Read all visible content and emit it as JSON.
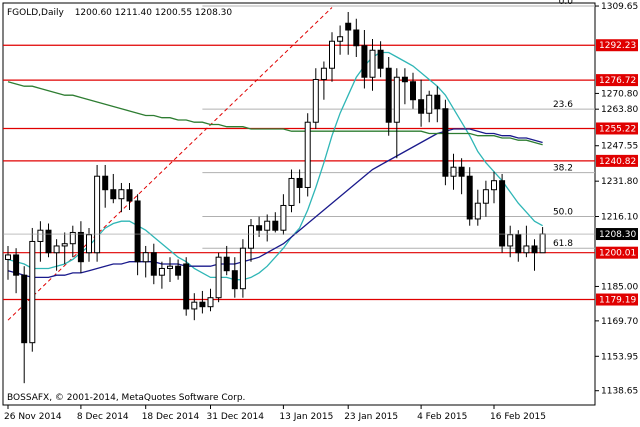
{
  "header": {
    "symbol": "FGOLD,Daily",
    "ohlc": "1200.60 1211.40 1200.55 1208.30"
  },
  "footer": {
    "copyright": "BOSSAFX, © 2001-2014, MetaQuotes Software Corp."
  },
  "colors": {
    "candle_up": "#ffffff",
    "candle_down": "#000000",
    "sr_line": "#e00000",
    "sma_fast": "#2fb6b6",
    "sma_mid": "#1a1a8c",
    "sma_slow": "#2e7d32",
    "trend_line": "#e00000",
    "fib_line": "#b0b0b0",
    "current_price_tag": "#000000"
  },
  "chart_data": {
    "type": "candlestick",
    "timeframe": "Daily",
    "y_axis": {
      "ylim": [
        1132.3,
        1311.0
      ],
      "tick_labels": [
        "1309.65",
        "1292.23",
        "1276.72",
        "1270.80",
        "1263.80",
        "1255.22",
        "1247.55",
        "1240.82",
        "1231.80",
        "1216.10",
        "1208.30",
        "1200.01",
        "1185.00",
        "1179.19",
        "1169.70",
        "1153.95",
        "1138.65"
      ]
    },
    "x_axis": {
      "tick_labels": [
        "26 Nov 2014",
        "8 Dec 2014",
        "18 Dec 2014",
        "31 Dec 2014",
        "13 Jan 2015",
        "23 Jan 2015",
        "4 Feb 2015",
        "16 Feb 2015"
      ]
    },
    "candles": [
      {
        "o": 1197.0,
        "h": 1203.0,
        "l": 1188.0,
        "c": 1199.0
      },
      {
        "o": 1199.0,
        "h": 1202.0,
        "l": 1182.0,
        "c": 1190.0
      },
      {
        "o": 1190.0,
        "h": 1194.0,
        "l": 1142.0,
        "c": 1160.0
      },
      {
        "o": 1160.0,
        "h": 1211.0,
        "l": 1156.0,
        "c": 1205.0
      },
      {
        "o": 1205.0,
        "h": 1214.0,
        "l": 1196.0,
        "c": 1210.0
      },
      {
        "o": 1210.0,
        "h": 1213.0,
        "l": 1198.0,
        "c": 1200.0
      },
      {
        "o": 1200.0,
        "h": 1206.0,
        "l": 1192.0,
        "c": 1203.0
      },
      {
        "o": 1203.0,
        "h": 1209.0,
        "l": 1195.0,
        "c": 1204.0
      },
      {
        "o": 1204.0,
        "h": 1212.0,
        "l": 1198.0,
        "c": 1209.0
      },
      {
        "o": 1209.0,
        "h": 1214.0,
        "l": 1191.0,
        "c": 1196.0
      },
      {
        "o": 1200.0,
        "h": 1211.0,
        "l": 1196.0,
        "c": 1208.0
      },
      {
        "o": 1200.0,
        "h": 1239.0,
        "l": 1196.0,
        "c": 1234.0
      },
      {
        "o": 1234.0,
        "h": 1239.0,
        "l": 1220.0,
        "c": 1228.0
      },
      {
        "o": 1228.0,
        "h": 1235.0,
        "l": 1222.0,
        "c": 1224.0
      },
      {
        "o": 1224.0,
        "h": 1231.0,
        "l": 1218.0,
        "c": 1228.0
      },
      {
        "o": 1228.0,
        "h": 1231.0,
        "l": 1219.0,
        "c": 1223.0
      },
      {
        "o": 1223.0,
        "h": 1226.0,
        "l": 1190.0,
        "c": 1196.0
      },
      {
        "o": 1196.0,
        "h": 1203.0,
        "l": 1189.0,
        "c": 1200.0
      },
      {
        "o": 1200.0,
        "h": 1204.0,
        "l": 1186.0,
        "c": 1190.0
      },
      {
        "o": 1190.0,
        "h": 1196.0,
        "l": 1184.0,
        "c": 1193.0
      },
      {
        "o": 1193.0,
        "h": 1198.0,
        "l": 1187.0,
        "c": 1194.0
      },
      {
        "o": 1194.0,
        "h": 1197.0,
        "l": 1188.0,
        "c": 1190.0
      },
      {
        "o": 1195.0,
        "h": 1198.0,
        "l": 1172.0,
        "c": 1175.0
      },
      {
        "o": 1175.0,
        "h": 1182.0,
        "l": 1170.0,
        "c": 1178.0
      },
      {
        "o": 1178.0,
        "h": 1183.0,
        "l": 1173.0,
        "c": 1176.0
      },
      {
        "o": 1176.0,
        "h": 1184.0,
        "l": 1174.0,
        "c": 1180.0
      },
      {
        "o": 1180.0,
        "h": 1200.0,
        "l": 1178.0,
        "c": 1198.0
      },
      {
        "o": 1198.0,
        "h": 1203.0,
        "l": 1190.0,
        "c": 1192.0
      },
      {
        "o": 1192.0,
        "h": 1198.0,
        "l": 1180.0,
        "c": 1184.0
      },
      {
        "o": 1184.0,
        "h": 1206.0,
        "l": 1180.0,
        "c": 1202.0
      },
      {
        "o": 1202.0,
        "h": 1215.0,
        "l": 1196.0,
        "c": 1212.0
      },
      {
        "o": 1212.0,
        "h": 1216.0,
        "l": 1207.0,
        "c": 1210.0
      },
      {
        "o": 1210.0,
        "h": 1217.0,
        "l": 1205.0,
        "c": 1214.0
      },
      {
        "o": 1214.0,
        "h": 1218.0,
        "l": 1209.0,
        "c": 1210.0
      },
      {
        "o": 1210.0,
        "h": 1226.0,
        "l": 1208.0,
        "c": 1221.0
      },
      {
        "o": 1221.0,
        "h": 1237.0,
        "l": 1218.0,
        "c": 1233.0
      },
      {
        "o": 1233.0,
        "h": 1237.0,
        "l": 1222.0,
        "c": 1229.0
      },
      {
        "o": 1229.0,
        "h": 1262.0,
        "l": 1225.0,
        "c": 1258.0
      },
      {
        "o": 1258.0,
        "h": 1282.0,
        "l": 1255.0,
        "c": 1277.0
      },
      {
        "o": 1277.0,
        "h": 1285.0,
        "l": 1268.0,
        "c": 1282.0
      },
      {
        "o": 1282.0,
        "h": 1298.0,
        "l": 1276.0,
        "c": 1294.0
      },
      {
        "o": 1294.0,
        "h": 1301.0,
        "l": 1288.0,
        "c": 1296.0
      },
      {
        "o": 1302.0,
        "h": 1307.0,
        "l": 1288.0,
        "c": 1299.0
      },
      {
        "o": 1299.0,
        "h": 1304.0,
        "l": 1287.0,
        "c": 1292.0
      },
      {
        "o": 1292.0,
        "h": 1299.0,
        "l": 1273.0,
        "c": 1278.0
      },
      {
        "o": 1278.0,
        "h": 1295.0,
        "l": 1272.0,
        "c": 1290.0
      },
      {
        "o": 1290.0,
        "h": 1294.0,
        "l": 1278.0,
        "c": 1282.0
      },
      {
        "o": 1282.0,
        "h": 1287.0,
        "l": 1252.0,
        "c": 1258.0
      },
      {
        "o": 1258.0,
        "h": 1282.0,
        "l": 1242.0,
        "c": 1278.0
      },
      {
        "o": 1278.0,
        "h": 1282.0,
        "l": 1266.0,
        "c": 1276.0
      },
      {
        "o": 1276.0,
        "h": 1280.0,
        "l": 1264.0,
        "c": 1268.0
      },
      {
        "o": 1268.0,
        "h": 1277.0,
        "l": 1256.0,
        "c": 1262.0
      },
      {
        "o": 1262.0,
        "h": 1272.0,
        "l": 1258.0,
        "c": 1270.0
      },
      {
        "o": 1270.0,
        "h": 1274.0,
        "l": 1258.0,
        "c": 1264.0
      },
      {
        "o": 1264.0,
        "h": 1268.0,
        "l": 1230.0,
        "c": 1234.0
      },
      {
        "o": 1234.0,
        "h": 1244.0,
        "l": 1228.0,
        "c": 1238.0
      },
      {
        "o": 1238.0,
        "h": 1242.0,
        "l": 1226.0,
        "c": 1234.0
      },
      {
        "o": 1234.0,
        "h": 1238.0,
        "l": 1212.0,
        "c": 1215.0
      },
      {
        "o": 1215.0,
        "h": 1228.0,
        "l": 1212.0,
        "c": 1222.0
      },
      {
        "o": 1222.0,
        "h": 1232.0,
        "l": 1216.0,
        "c": 1228.0
      },
      {
        "o": 1228.0,
        "h": 1236.0,
        "l": 1222.0,
        "c": 1232.0
      },
      {
        "o": 1232.0,
        "h": 1235.0,
        "l": 1200.0,
        "c": 1203.0
      },
      {
        "o": 1203.0,
        "h": 1212.0,
        "l": 1198.0,
        "c": 1208.0
      },
      {
        "o": 1208.0,
        "h": 1210.0,
        "l": 1196.0,
        "c": 1200.0
      },
      {
        "o": 1200.0,
        "h": 1212.0,
        "l": 1198.0,
        "c": 1203.0
      },
      {
        "o": 1203.0,
        "h": 1206.0,
        "l": 1192.0,
        "c": 1200.0
      },
      {
        "o": 1200.0,
        "h": 1211.4,
        "l": 1200.55,
        "c": 1208.3
      }
    ],
    "sr_levels": [
      {
        "label": "1292.23",
        "value": 1292.23
      },
      {
        "label": "1276.72",
        "value": 1276.72
      },
      {
        "label": "1255.22",
        "value": 1255.22
      },
      {
        "label": "1240.82",
        "value": 1240.82
      },
      {
        "label": "1200.01",
        "value": 1200.01
      },
      {
        "label": "1179.19",
        "value": 1179.19
      }
    ],
    "fib_levels": [
      {
        "label": "0.0",
        "value": 1309.65
      },
      {
        "label": "23.6",
        "value": 1263.8
      },
      {
        "label": "38.2",
        "value": 1235.6
      },
      {
        "label": "50.0",
        "value": 1216.1
      },
      {
        "label": "61.8",
        "value": 1202.0
      }
    ],
    "current_price": {
      "label": "1208.30",
      "value": 1208.3
    },
    "moving_averages": [
      {
        "values": [
          1197,
          1196,
          1195,
          1193,
          1193,
          1193,
          1194,
          1195,
          1197,
          1200,
          1203,
          1207,
          1211,
          1213,
          1214,
          1214,
          1212,
          1210,
          1207,
          1204,
          1201,
          1198,
          1196,
          1193,
          1191,
          1189,
          1189,
          1189,
          1188,
          1188,
          1189,
          1191,
          1194,
          1198,
          1202,
          1207,
          1211,
          1219,
          1229,
          1240,
          1252,
          1262,
          1270,
          1278,
          1283,
          1287,
          1289,
          1289,
          1287,
          1285,
          1283,
          1280,
          1277,
          1274,
          1270,
          1264,
          1258,
          1252,
          1245,
          1240,
          1236,
          1232,
          1227,
          1222,
          1218,
          1214,
          1212
        ]
      },
      {
        "values": [
          1192,
          1191,
          1190,
          1189,
          1189,
          1189,
          1190,
          1190,
          1191,
          1191,
          1192,
          1193,
          1194,
          1195,
          1195,
          1196,
          1196,
          1196,
          1196,
          1195,
          1195,
          1195,
          1194,
          1194,
          1194,
          1194,
          1195,
          1195,
          1195,
          1196,
          1197,
          1198,
          1200,
          1202,
          1204,
          1207,
          1210,
          1213,
          1216,
          1219,
          1222,
          1225,
          1228,
          1231,
          1234,
          1237,
          1239,
          1241,
          1243,
          1245,
          1247,
          1249,
          1251,
          1253,
          1254,
          1255,
          1255,
          1255,
          1254,
          1253,
          1253,
          1252,
          1252,
          1251,
          1251,
          1250,
          1249
        ]
      },
      {
        "values": [
          1276,
          1275,
          1274,
          1274,
          1273,
          1272,
          1271,
          1270,
          1270,
          1269,
          1268,
          1267,
          1266,
          1265,
          1264,
          1263,
          1262,
          1261,
          1261,
          1260,
          1260,
          1259,
          1259,
          1258,
          1258,
          1257,
          1257,
          1256,
          1256,
          1256,
          1255,
          1255,
          1255,
          1255,
          1255,
          1254,
          1254,
          1254,
          1254,
          1254,
          1254,
          1254,
          1254,
          1254,
          1254,
          1254,
          1254,
          1254,
          1254,
          1254,
          1254,
          1254,
          1253,
          1253,
          1253,
          1253,
          1253,
          1253,
          1252,
          1252,
          1252,
          1251,
          1251,
          1250,
          1250,
          1249,
          1248
        ]
      }
    ],
    "trend_line": {
      "from": {
        "i": 0,
        "v": 1170
      },
      "to": {
        "i": 40,
        "v": 1309
      }
    },
    "grid": false,
    "legend": "none"
  }
}
